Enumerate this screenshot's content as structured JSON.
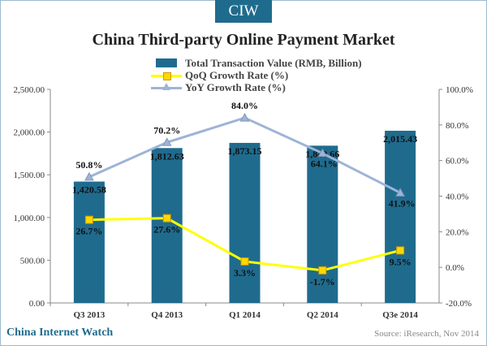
{
  "brand": "CIW",
  "footer": {
    "site": "China Internet Watch",
    "source": "Source: iResearch, Nov 2014"
  },
  "chart_data": {
    "type": "bar",
    "title": "China Third-party Online Payment Market",
    "categories": [
      "Q3 2013",
      "Q4 2013",
      "Q1 2014",
      "Q2 2014",
      "Q3e 2014"
    ],
    "bar_series": {
      "name": "Total Transaction Value (RMB, Billion)",
      "values": [
        1420.58,
        1812.63,
        1873.15,
        1840.66,
        2015.43
      ],
      "labels": [
        "1,420.58",
        "1,812.63",
        "1,873.15",
        "1,840.66",
        "2,015.43"
      ],
      "color": "#1f6b8e"
    },
    "line_series": [
      {
        "name": "QoQ Growth Rate (%)",
        "values": [
          26.7,
          27.6,
          3.3,
          -1.7,
          9.5
        ],
        "labels": [
          "26.7%",
          "27.6%",
          "3.3%",
          "-1.7%",
          "9.5%"
        ],
        "color": "#ffff00",
        "marker": "square"
      },
      {
        "name": "YoY Growth Rate (%)",
        "values": [
          50.8,
          70.2,
          84.0,
          64.1,
          41.9
        ],
        "labels": [
          "50.8%",
          "70.2%",
          "84.0%",
          "64.1%",
          "41.9%"
        ],
        "color": "#9db4d6",
        "marker": "triangle"
      }
    ],
    "y_left": {
      "ylim": [
        0,
        2500
      ],
      "ticks": [
        "0.00",
        "500.00",
        "1,000.00",
        "1,500.00",
        "2,000.00",
        "2,500.00"
      ]
    },
    "y_right": {
      "ylim": [
        -20,
        100
      ],
      "ticks": [
        "-20.0%",
        "0.0%",
        "20.0%",
        "40.0%",
        "60.0%",
        "80.0%",
        "100.0%"
      ]
    },
    "grid": false,
    "legend_position": "top-center"
  }
}
